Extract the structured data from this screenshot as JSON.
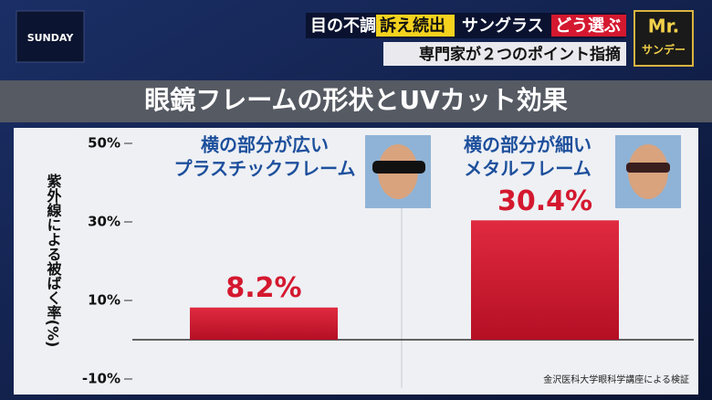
{
  "logo": "SUNDAY",
  "header": {
    "segments": [
      "目の不調",
      "訴え続出",
      "サングラス",
      "どう選ぶ"
    ],
    "subtitle": "専門家が２つのポイント指摘"
  },
  "badge": [
    "Mr.",
    "サンデー"
  ],
  "chart_data": {
    "type": "bar",
    "title": "眼鏡フレームの形状とUVカット効果",
    "y_label": "紫外線による被ばく率(%)",
    "categories": [
      [
        "横の部分が広い",
        "プラスチックフレーム"
      ],
      [
        "横の部分が細い",
        "メタルフレーム"
      ]
    ],
    "values": [
      8.2,
      30.4
    ],
    "value_labels": [
      "8.2%",
      "30.4%"
    ],
    "color": "#d4182f",
    "ylim": [
      -10,
      50
    ],
    "yticks": [
      {
        "value": 50,
        "label": "50%"
      },
      {
        "value": 30,
        "label": "30%"
      },
      {
        "value": 10,
        "label": "10%"
      },
      {
        "value": -10,
        "label": "-10%"
      }
    ],
    "grid": false,
    "source": "金沢医科大学眼科学講座による検証"
  }
}
